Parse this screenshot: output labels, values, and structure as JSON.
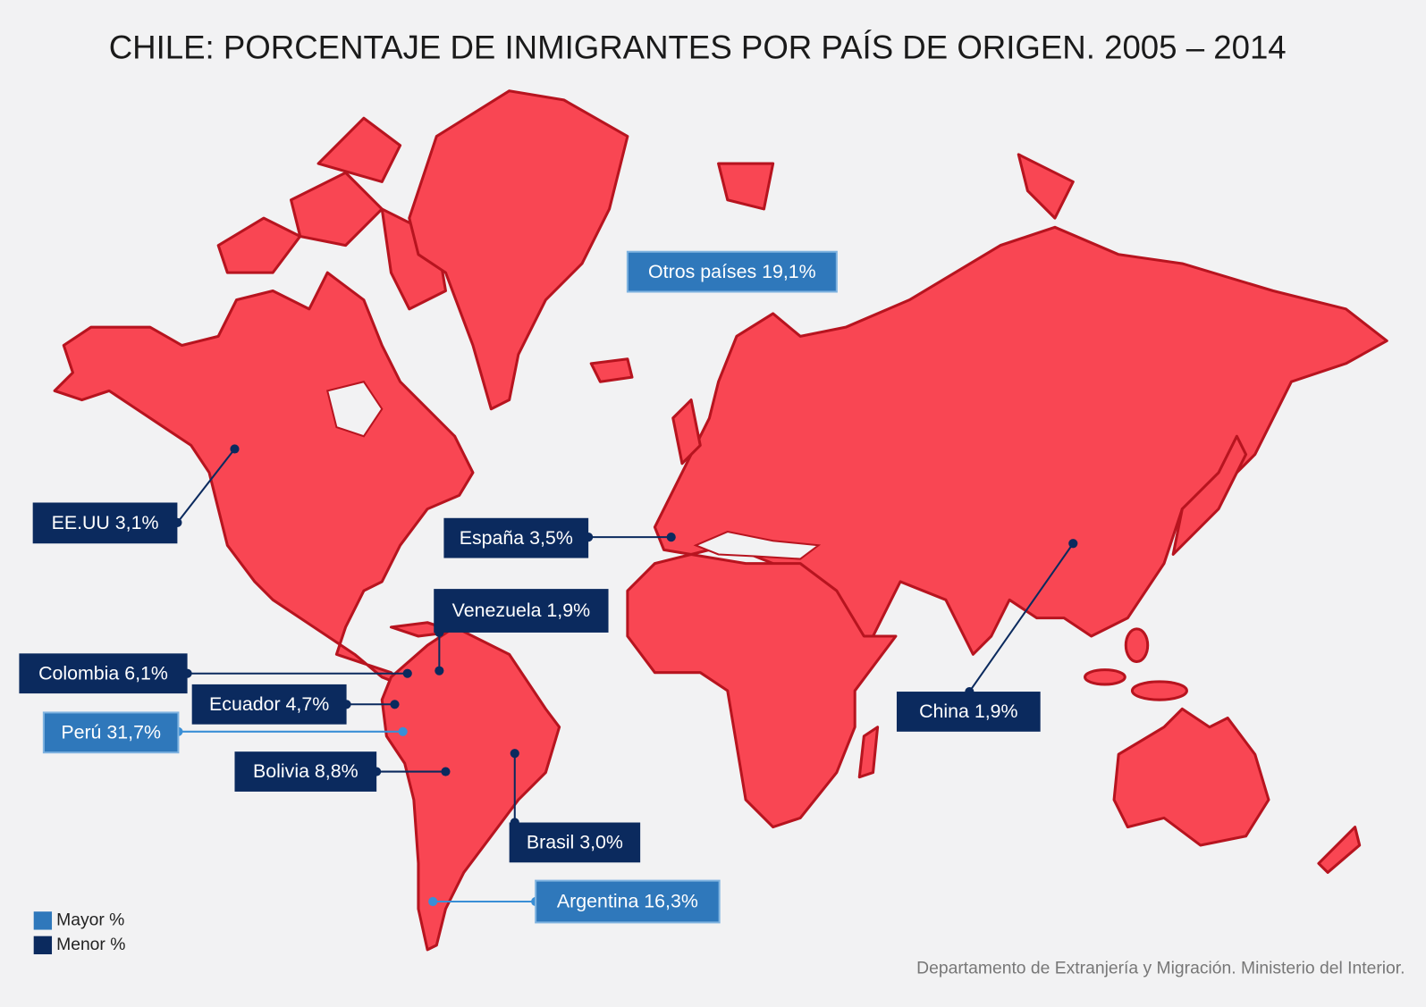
{
  "title": "CHILE: PORCENTAJE DE INMIGRANTES POR PAÍS DE ORIGEN. 2005 – 2014",
  "labels": [
    {
      "text": "Otros países 19,1%",
      "color": "#2f78bb"
    },
    {
      "text": "EE.UU 3,1%",
      "color": "#0b2a5e"
    },
    {
      "text": "España 3,5%",
      "color": "#0b2a5e"
    },
    {
      "text": "Venezuela 1,9%",
      "color": "#0b2a5e"
    },
    {
      "text": "Colombia 6,1%",
      "color": "#0b2a5e"
    },
    {
      "text": "Ecuador 4,7%",
      "color": "#0b2a5e"
    },
    {
      "text": "Perú 31,7%",
      "color": "#2f78bb"
    },
    {
      "text": "Bolivia 8,8%",
      "color": "#0b2a5e"
    },
    {
      "text": "Brasil 3,0%",
      "color": "#0b2a5e"
    },
    {
      "text": "Argentina 16,3%",
      "color": "#2f78bb"
    },
    {
      "text": "China 1,9%",
      "color": "#0b2a5e"
    }
  ],
  "legend": [
    {
      "text": "Mayor %",
      "color": "#2f78bb"
    },
    {
      "text": "Menor %",
      "color": "#0b2a5e"
    }
  ],
  "source": "Departamento de Extranjería y Migración. Ministerio del Interior."
}
